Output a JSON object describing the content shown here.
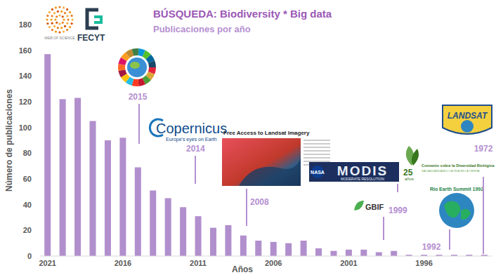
{
  "chart_data": {
    "type": "bar",
    "title": "BÚSQUEDA: Biodiversity * Big data",
    "subtitle": "Publicaciones por año",
    "x_label": "Años",
    "y_label": "Número de publicaciones",
    "categories": [
      "2021",
      null,
      null,
      null,
      null,
      "2016",
      null,
      null,
      null,
      null,
      "2011",
      null,
      null,
      null,
      null,
      "2006",
      null,
      null,
      null,
      null,
      "2001",
      null,
      null,
      null,
      null,
      "1996",
      null,
      null,
      null,
      null
    ],
    "values": [
      157,
      122,
      123,
      105,
      90,
      92,
      69,
      51,
      45,
      38,
      31,
      22,
      24,
      16,
      12,
      11,
      10,
      12,
      6,
      4,
      5,
      5,
      3,
      4,
      1,
      1,
      1,
      1,
      1,
      1
    ],
    "color": "#b18fcd",
    "ylim": [
      0,
      180
    ],
    "yticks": [
      0,
      20,
      40,
      60,
      80,
      100,
      120,
      140,
      160,
      180
    ],
    "grid": false,
    "logos": [
      "WEB OF SCIENCE",
      "FECYT"
    ],
    "annotations": [
      {
        "label": "2015",
        "logo": []
      },
      {
        "label": "2014",
        "logo": [
          "Copernicus",
          "Europe's eyes on Earth"
        ]
      },
      {
        "label": "2008",
        "logo": [
          "Free Access to Landsat Imagery"
        ]
      },
      {
        "logo": [
          "NASA",
          "MODIS",
          "MODERATE RESOLUTION"
        ]
      },
      {
        "logo": [
          "25",
          "años",
          "Convenio sobre la Diversidad Biológica",
          "SALVAGUARDANDO LA VIDA EN LA TIERRA"
        ]
      },
      {
        "label": "1999",
        "logo": [
          "GBIF"
        ]
      },
      {
        "label": "1992",
        "logo": [
          "Rio Earth Summit 1992"
        ]
      },
      {
        "label": "1972",
        "logo": [
          "LANDSAT"
        ]
      }
    ]
  }
}
